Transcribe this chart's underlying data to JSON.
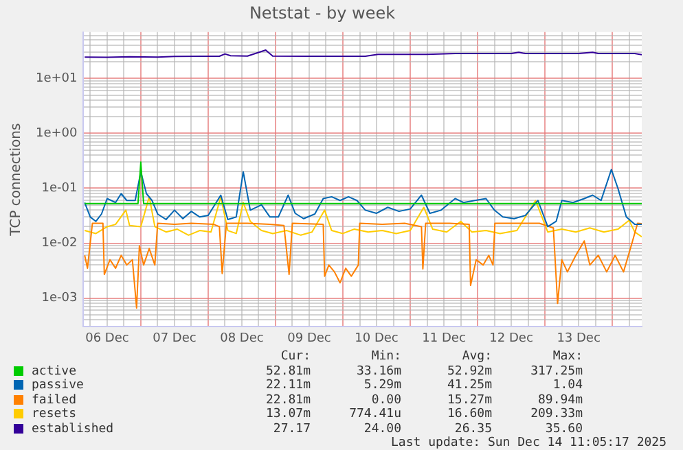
{
  "chart_data": {
    "type": "line",
    "title": "Netstat - by week",
    "ylabel": "TCP connections",
    "log": true,
    "grid": true,
    "legend": "bottom",
    "marker": "none",
    "line_style": "solid",
    "xlim": [
      "2025-12-06T03:20",
      "2025-12-14T10:30"
    ],
    "xticks": [
      {
        "value": "2025-12-06T06:00",
        "label": null
      },
      {
        "value": "2025-12-06T12:00",
        "label": "06 Dec"
      },
      {
        "value": "2025-12-06T18:00",
        "label": null
      },
      {
        "value": "2025-12-07T00:00",
        "label": null
      },
      {
        "value": "2025-12-07T06:00",
        "label": null
      },
      {
        "value": "2025-12-07T12:00",
        "label": "07 Dec"
      },
      {
        "value": "2025-12-07T18:00",
        "label": null
      },
      {
        "value": "2025-12-08T00:00",
        "label": null
      },
      {
        "value": "2025-12-08T06:00",
        "label": null
      },
      {
        "value": "2025-12-08T12:00",
        "label": "08 Dec"
      },
      {
        "value": "2025-12-08T18:00",
        "label": null
      },
      {
        "value": "2025-12-09T00:00",
        "label": null
      },
      {
        "value": "2025-12-09T06:00",
        "label": null
      },
      {
        "value": "2025-12-09T12:00",
        "label": "09 Dec"
      },
      {
        "value": "2025-12-09T18:00",
        "label": null
      },
      {
        "value": "2025-12-10T00:00",
        "label": null
      },
      {
        "value": "2025-12-10T06:00",
        "label": null
      },
      {
        "value": "2025-12-10T12:00",
        "label": "10 Dec"
      },
      {
        "value": "2025-12-10T18:00",
        "label": null
      },
      {
        "value": "2025-12-11T00:00",
        "label": null
      },
      {
        "value": "2025-12-11T06:00",
        "label": null
      },
      {
        "value": "2025-12-11T12:00",
        "label": "11 Dec"
      },
      {
        "value": "2025-12-11T18:00",
        "label": null
      },
      {
        "value": "2025-12-12T00:00",
        "label": null
      },
      {
        "value": "2025-12-12T06:00",
        "label": null
      },
      {
        "value": "2025-12-12T12:00",
        "label": "12 Dec"
      },
      {
        "value": "2025-12-12T18:00",
        "label": null
      },
      {
        "value": "2025-12-13T00:00",
        "label": null
      },
      {
        "value": "2025-12-13T06:00",
        "label": null
      },
      {
        "value": "2025-12-13T12:00",
        "label": "13 Dec"
      },
      {
        "value": "2025-12-13T18:00",
        "label": null
      },
      {
        "value": "2025-12-14T00:00",
        "label": null
      },
      {
        "value": "2025-12-14T06:00",
        "label": null
      }
    ],
    "ylim": [
      0.0003,
      70
    ],
    "yticks": [
      {
        "value": 0.0004,
        "label": null
      },
      {
        "value": 0.0005,
        "label": null
      },
      {
        "value": 0.0006,
        "label": null
      },
      {
        "value": 0.0007,
        "label": null
      },
      {
        "value": 0.0008,
        "label": null
      },
      {
        "value": 0.0009,
        "label": null
      },
      {
        "value": 0.001,
        "label": "1e-03"
      },
      {
        "value": 0.002,
        "label": null
      },
      {
        "value": 0.003,
        "label": null
      },
      {
        "value": 0.004,
        "label": null
      },
      {
        "value": 0.005,
        "label": null
      },
      {
        "value": 0.006,
        "label": null
      },
      {
        "value": 0.007,
        "label": null
      },
      {
        "value": 0.008,
        "label": null
      },
      {
        "value": 0.009,
        "label": null
      },
      {
        "value": 0.01,
        "label": "1e-02"
      },
      {
        "value": 0.02,
        "label": null
      },
      {
        "value": 0.03,
        "label": null
      },
      {
        "value": 0.04,
        "label": null
      },
      {
        "value": 0.05,
        "label": null
      },
      {
        "value": 0.06,
        "label": null
      },
      {
        "value": 0.07,
        "label": null
      },
      {
        "value": 0.08,
        "label": null
      },
      {
        "value": 0.09,
        "label": null
      },
      {
        "value": 0.1,
        "label": "1e-01"
      },
      {
        "value": 0.2,
        "label": null
      },
      {
        "value": 0.3,
        "label": null
      },
      {
        "value": 0.4,
        "label": null
      },
      {
        "value": 0.5,
        "label": null
      },
      {
        "value": 0.6,
        "label": null
      },
      {
        "value": 0.7,
        "label": null
      },
      {
        "value": 0.8,
        "label": null
      },
      {
        "value": 0.9,
        "label": null
      },
      {
        "value": 1,
        "label": "1e+00"
      },
      {
        "value": 2,
        "label": null
      },
      {
        "value": 3,
        "label": null
      },
      {
        "value": 4,
        "label": null
      },
      {
        "value": 5,
        "label": null
      },
      {
        "value": 6,
        "label": null
      },
      {
        "value": 7,
        "label": null
      },
      {
        "value": 8,
        "label": null
      },
      {
        "value": 9,
        "label": null
      },
      {
        "value": 10,
        "label": "1e+01"
      },
      {
        "value": 20,
        "label": null
      },
      {
        "value": 30,
        "label": null
      },
      {
        "value": 40,
        "label": null
      },
      {
        "value": 50,
        "label": null
      },
      {
        "value": 60,
        "label": null
      }
    ],
    "series": [
      {
        "name": "active",
        "color": "#00cc00",
        "x": [
          "2025-12-06T04:00",
          "2025-12-06T23:00",
          "2025-12-07T00:00",
          "2025-12-07T01:00",
          "2025-12-14T10:30"
        ],
        "values": [
          0.0529,
          0.0529,
          0.3,
          0.0529,
          0.0528
        ]
      },
      {
        "name": "passive",
        "color": "#0066b3",
        "x": [
          "2025-12-06T04:00",
          "2025-12-06T06:00",
          "2025-12-06T08:00",
          "2025-12-06T10:00",
          "2025-12-06T12:00",
          "2025-12-06T15:00",
          "2025-12-06T17:00",
          "2025-12-06T19:00",
          "2025-12-06T22:00",
          "2025-12-07T00:00",
          "2025-12-07T02:00",
          "2025-12-07T04:00",
          "2025-12-07T06:00",
          "2025-12-07T09:00",
          "2025-12-07T12:00",
          "2025-12-07T15:00",
          "2025-12-07T18:00",
          "2025-12-07T21:00",
          "2025-12-08T00:00",
          "2025-12-08T04:30",
          "2025-12-08T07:00",
          "2025-12-08T10:00",
          "2025-12-08T12:30",
          "2025-12-08T15:00",
          "2025-12-08T19:00",
          "2025-12-08T22:00",
          "2025-12-09T01:00",
          "2025-12-09T04:30",
          "2025-12-09T07:00",
          "2025-12-09T10:00",
          "2025-12-09T14:00",
          "2025-12-09T17:00",
          "2025-12-09T20:00",
          "2025-12-09T23:00",
          "2025-12-10T02:00",
          "2025-12-10T05:00",
          "2025-12-10T08:00",
          "2025-12-10T12:00",
          "2025-12-10T16:00",
          "2025-12-10T20:00",
          "2025-12-11T00:00",
          "2025-12-11T04:00",
          "2025-12-11T07:00",
          "2025-12-11T11:00",
          "2025-12-11T16:00",
          "2025-12-11T19:00",
          "2025-12-11T23:00",
          "2025-12-12T03:00",
          "2025-12-12T06:00",
          "2025-12-12T09:00",
          "2025-12-12T13:00",
          "2025-12-12T17:00",
          "2025-12-12T21:30",
          "2025-12-13T01:00",
          "2025-12-13T04:00",
          "2025-12-13T06:00",
          "2025-12-13T10:00",
          "2025-12-13T14:00",
          "2025-12-13T17:00",
          "2025-12-13T20:00",
          "2025-12-13T23:40",
          "2025-12-14T02:00",
          "2025-12-14T05:00",
          "2025-12-14T08:00",
          "2025-12-14T10:30"
        ],
        "values": [
          0.055,
          0.03,
          0.025,
          0.034,
          0.065,
          0.055,
          0.08,
          0.06,
          0.06,
          0.2,
          0.08,
          0.06,
          0.034,
          0.027,
          0.04,
          0.028,
          0.038,
          0.03,
          0.032,
          0.075,
          0.027,
          0.03,
          0.2,
          0.04,
          0.05,
          0.03,
          0.03,
          0.075,
          0.035,
          0.028,
          0.034,
          0.065,
          0.07,
          0.06,
          0.07,
          0.06,
          0.04,
          0.035,
          0.045,
          0.038,
          0.042,
          0.075,
          0.035,
          0.04,
          0.065,
          0.055,
          0.06,
          0.065,
          0.04,
          0.03,
          0.028,
          0.032,
          0.06,
          0.02,
          0.025,
          0.06,
          0.055,
          0.065,
          0.075,
          0.06,
          0.22,
          0.1,
          0.03,
          0.022,
          0.0221
        ]
      },
      {
        "name": "failed",
        "color": "#ff8000",
        "x": [
          "2025-12-06T04:00",
          "2025-12-06T05:00",
          "2025-12-06T06:45",
          "2025-12-06T10:30",
          "2025-12-06T11:00",
          "2025-12-06T13:00",
          "2025-12-06T15:00",
          "2025-12-06T17:00",
          "2025-12-06T19:00",
          "2025-12-06T21:00",
          "2025-12-06T22:30",
          "2025-12-06T23:30",
          "2025-12-07T01:00",
          "2025-12-07T03:00",
          "2025-12-07T05:00",
          "2025-12-07T06:00",
          "2025-12-07T12:00",
          "2025-12-07T18:00",
          "2025-12-08T02:00",
          "2025-12-08T04:00",
          "2025-12-08T05:00",
          "2025-12-08T06:30",
          "2025-12-08T14:00",
          "2025-12-08T22:00",
          "2025-12-09T03:00",
          "2025-12-09T04:50",
          "2025-12-09T06:00",
          "2025-12-09T17:00",
          "2025-12-09T17:30",
          "2025-12-09T19:00",
          "2025-12-09T21:00",
          "2025-12-09T23:00",
          "2025-12-10T01:00",
          "2025-12-10T03:00",
          "2025-12-10T05:30",
          "2025-12-10T06:00",
          "2025-12-10T14:00",
          "2025-12-10T22:00",
          "2025-12-11T04:00",
          "2025-12-11T04:30",
          "2025-12-11T05:30",
          "2025-12-11T14:00",
          "2025-12-11T21:00",
          "2025-12-11T21:30",
          "2025-12-11T23:30",
          "2025-12-12T02:00",
          "2025-12-12T04:00",
          "2025-12-12T05:30",
          "2025-12-12T06:10",
          "2025-12-12T14:00",
          "2025-12-12T22:00",
          "2025-12-13T03:00",
          "2025-12-13T04:30",
          "2025-12-13T06:00",
          "2025-12-13T08:00",
          "2025-12-13T11:00",
          "2025-12-13T14:00",
          "2025-12-13T16:00",
          "2025-12-13T19:00",
          "2025-12-13T22:00",
          "2025-12-14T01:00",
          "2025-12-14T04:00",
          "2025-12-14T07:00",
          "2025-12-14T09:00",
          "2025-12-14T10:30"
        ],
        "values": [
          0.006,
          0.0035,
          0.023,
          0.023,
          0.0027,
          0.005,
          0.0035,
          0.006,
          0.004,
          0.005,
          0.00066,
          0.009,
          0.004,
          0.008,
          0.004,
          0.023,
          0.022,
          0.023,
          0.022,
          0.02,
          0.0028,
          0.023,
          0.023,
          0.022,
          0.021,
          0.0027,
          0.023,
          0.022,
          0.0025,
          0.004,
          0.003,
          0.0019,
          0.0035,
          0.0025,
          0.004,
          0.023,
          0.022,
          0.023,
          0.02,
          0.0034,
          0.023,
          0.023,
          0.022,
          0.0017,
          0.005,
          0.004,
          0.006,
          0.004,
          0.023,
          0.023,
          0.023,
          0.019,
          0.0008,
          0.005,
          0.003,
          0.006,
          0.011,
          0.004,
          0.006,
          0.003,
          0.006,
          0.003,
          0.01,
          0.023,
          0.0228
        ]
      },
      {
        "name": "resets",
        "color": "#ffcc00",
        "x": [
          "2025-12-06T04:00",
          "2025-12-06T08:00",
          "2025-12-06T12:00",
          "2025-12-06T15:00",
          "2025-12-06T18:40",
          "2025-12-06T20:00",
          "2025-12-07T00:00",
          "2025-12-07T03:00",
          "2025-12-07T05:00",
          "2025-12-07T09:00",
          "2025-12-07T13:00",
          "2025-12-07T17:00",
          "2025-12-07T21:00",
          "2025-12-08T01:00",
          "2025-12-08T04:30",
          "2025-12-08T07:00",
          "2025-12-08T10:00",
          "2025-12-08T12:30",
          "2025-12-08T15:00",
          "2025-12-08T19:00",
          "2025-12-08T23:00",
          "2025-12-09T04:00",
          "2025-12-09T09:00",
          "2025-12-09T13:00",
          "2025-12-09T17:30",
          "2025-12-09T20:00",
          "2025-12-10T00:00",
          "2025-12-10T04:00",
          "2025-12-10T09:00",
          "2025-12-10T14:00",
          "2025-12-10T19:00",
          "2025-12-11T00:00",
          "2025-12-11T04:50",
          "2025-12-11T08:00",
          "2025-12-11T13:00",
          "2025-12-11T18:00",
          "2025-12-11T22:00",
          "2025-12-12T03:00",
          "2025-12-12T08:00",
          "2025-12-12T14:00",
          "2025-12-12T20:40",
          "2025-12-13T01:00",
          "2025-12-13T06:00",
          "2025-12-13T11:00",
          "2025-12-13T16:00",
          "2025-12-13T21:00",
          "2025-12-14T02:00",
          "2025-12-14T06:00",
          "2025-12-14T08:00",
          "2025-12-14T10:30"
        ],
        "values": [
          0.017,
          0.015,
          0.02,
          0.022,
          0.04,
          0.021,
          0.02,
          0.07,
          0.02,
          0.016,
          0.018,
          0.014,
          0.017,
          0.016,
          0.07,
          0.017,
          0.015,
          0.055,
          0.025,
          0.017,
          0.015,
          0.017,
          0.014,
          0.016,
          0.04,
          0.017,
          0.015,
          0.018,
          0.016,
          0.017,
          0.015,
          0.017,
          0.045,
          0.018,
          0.016,
          0.025,
          0.016,
          0.017,
          0.015,
          0.017,
          0.06,
          0.016,
          0.018,
          0.016,
          0.019,
          0.016,
          0.018,
          0.026,
          0.016,
          0.0131
        ]
      },
      {
        "name": "established",
        "color": "#330099",
        "x": [
          "2025-12-06T04:00",
          "2025-12-06T12:00",
          "2025-12-06T20:00",
          "2025-12-07T06:00",
          "2025-12-07T12:00",
          "2025-12-07T22:00",
          "2025-12-08T04:00",
          "2025-12-08T06:00",
          "2025-12-08T08:00",
          "2025-12-08T14:00",
          "2025-12-08T20:30",
          "2025-12-08T23:00",
          "2025-12-09T12:00",
          "2025-12-10T08:00",
          "2025-12-10T12:30",
          "2025-12-11T06:00",
          "2025-12-11T16:00",
          "2025-12-12T12:00",
          "2025-12-12T14:40",
          "2025-12-12T17:00",
          "2025-12-13T12:00",
          "2025-12-13T17:00",
          "2025-12-13T19:00",
          "2025-12-14T08:00",
          "2025-12-14T10:30"
        ],
        "values": [
          24.5,
          24.3,
          24.8,
          24.5,
          25.3,
          25.4,
          25.4,
          28,
          26,
          25.6,
          33,
          25.6,
          25.5,
          25.5,
          27.5,
          27.5,
          28.5,
          28.5,
          30,
          28.5,
          28.5,
          30,
          28.5,
          28.5,
          27.17
        ]
      }
    ],
    "annotations": [
      "Cur:",
      "Min:",
      "Avg:",
      "Max:",
      "52.81m",
      "33.16m",
      "52.92m",
      "317.25m",
      "22.11m",
      "5.29m",
      "41.25m",
      "1.04",
      "22.81m",
      "0.00",
      "15.27m",
      "89.94m",
      "13.07m",
      "774.41u",
      "16.60m",
      "209.33m",
      "27.17",
      "24.00",
      "26.35",
      "35.60",
      "Last update: Sun Dec 14 11:05:17 2025"
    ]
  }
}
